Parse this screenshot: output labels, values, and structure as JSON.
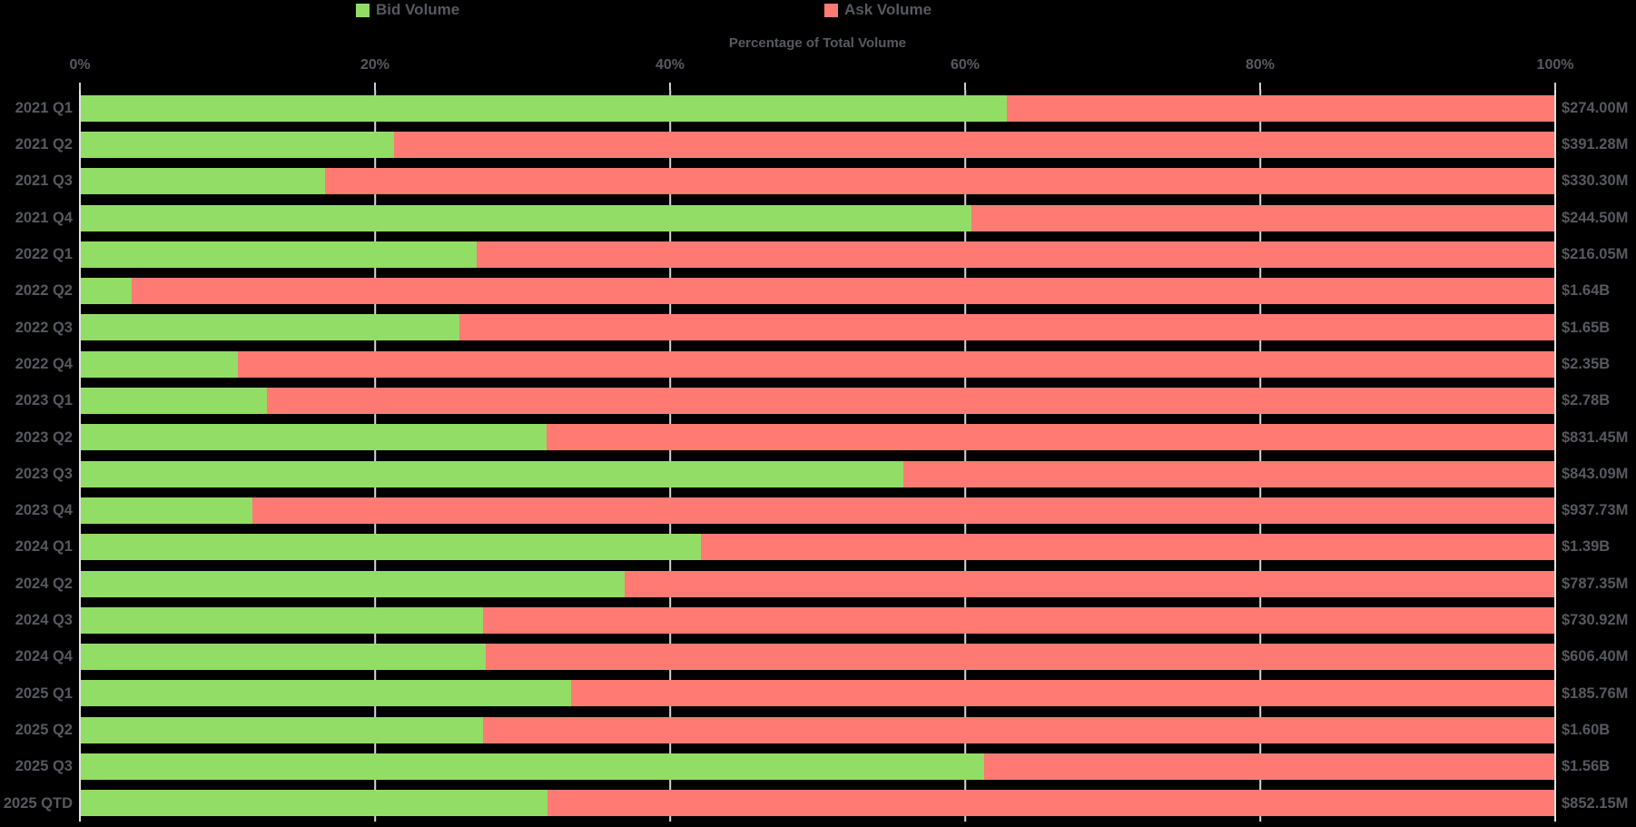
{
  "legend": {
    "bid_label": "Bid Volume",
    "ask_label": "Ask Volume"
  },
  "title": "Percentage of Total Volume",
  "colors": {
    "bid": "#92dd66",
    "ask": "#ff7a73",
    "background": "#000000",
    "text": "#56595f",
    "grid": "#d6d6d6",
    "axis_line": "#e2e2e2"
  },
  "axis": {
    "tick_labels": [
      "0%",
      "20%",
      "40%",
      "60%",
      "80%",
      "100%"
    ],
    "tick_positions": [
      0,
      20,
      40,
      60,
      80,
      100
    ],
    "grid_positions": [
      20,
      40,
      60,
      80
    ]
  },
  "chart_data": {
    "type": "bar",
    "orientation": "horizontal",
    "stacked": true,
    "title": "Percentage of Total Volume",
    "xlabel": "Percentage of Total Volume",
    "xlim": [
      0,
      100
    ],
    "grid": true,
    "legend_position": "top",
    "categories": [
      "2021 Q1",
      "2021 Q2",
      "2021 Q3",
      "2021 Q4",
      "2022 Q1",
      "2022 Q2",
      "2022 Q3",
      "2022 Q4",
      "2023 Q1",
      "2023 Q2",
      "2023 Q3",
      "2023 Q4",
      "2024 Q1",
      "2024 Q2",
      "2024 Q3",
      "2024 Q4",
      "2025 Q1",
      "2025 Q2",
      "2025 Q3",
      "2025 QTD"
    ],
    "series": [
      {
        "name": "Bid Volume",
        "color": "#92dd66",
        "values_pct": [
          62.8,
          21.3,
          16.6,
          60.4,
          26.9,
          3.5,
          25.7,
          10.7,
          12.7,
          31.6,
          55.8,
          11.7,
          42.1,
          36.9,
          27.3,
          27.5,
          33.3,
          27.3,
          61.3,
          31.7
        ]
      },
      {
        "name": "Ask Volume",
        "color": "#ff7a73",
        "values_pct": [
          37.2,
          78.7,
          83.4,
          39.6,
          73.1,
          96.5,
          74.3,
          89.3,
          87.3,
          68.4,
          44.2,
          88.3,
          57.9,
          63.1,
          72.7,
          72.5,
          66.7,
          72.7,
          38.7,
          68.3
        ]
      }
    ],
    "total_volume_labels": [
      "$274.00M",
      "$391.28M",
      "$330.30M",
      "$244.50M",
      "$216.05M",
      "$1.64B",
      "$1.65B",
      "$2.35B",
      "$2.78B",
      "$831.45M",
      "$843.09M",
      "$937.73M",
      "$1.39B",
      "$787.35M",
      "$730.92M",
      "$606.40M",
      "$185.76M",
      "$1.60B",
      "$1.56B",
      "$852.15M"
    ]
  }
}
